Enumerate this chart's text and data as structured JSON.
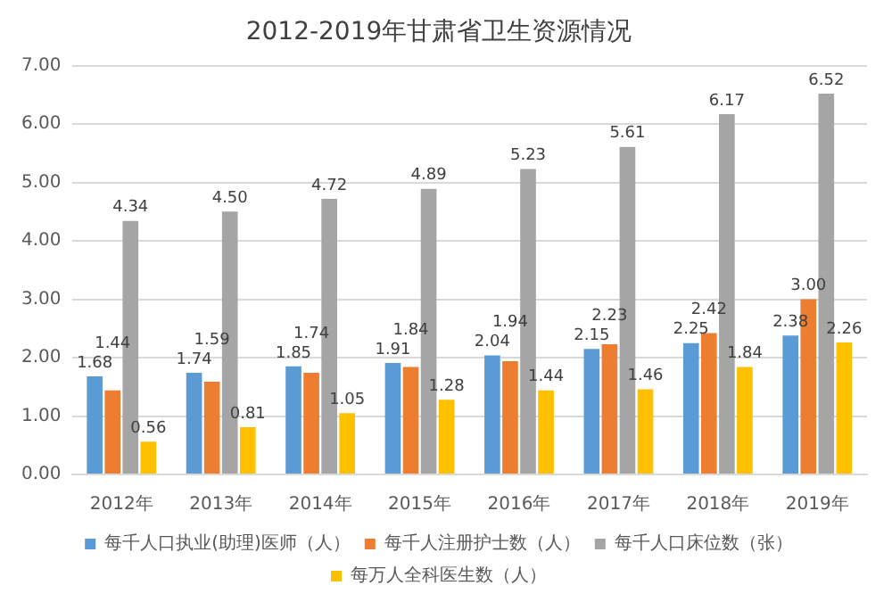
{
  "chart_data": {
    "type": "bar",
    "title": "2012-2019年甘肃省卫生资源情况",
    "categories": [
      "2012年",
      "2013年",
      "2014年",
      "2015年",
      "2016年",
      "2017年",
      "2018年",
      "2019年"
    ],
    "series": [
      {
        "name": "每千人口执业(助理)医师（人）",
        "color": "#5b9bd5",
        "values": [
          1.68,
          1.74,
          1.85,
          1.91,
          2.04,
          2.15,
          2.25,
          2.38
        ],
        "value_labels": [
          "1.68",
          "1.74",
          "1.85",
          "1.91",
          "2.04",
          "2.15",
          "2.25",
          "2.38"
        ]
      },
      {
        "name": "每千人注册护士数（人）",
        "color": "#ed7d31",
        "values": [
          1.44,
          1.59,
          1.74,
          1.84,
          1.94,
          2.23,
          2.42,
          3.0
        ],
        "value_labels": [
          "1.44",
          "1.59",
          "1.74",
          "1.84",
          "1.94",
          "2.23",
          "2.42",
          "3.00"
        ]
      },
      {
        "name": "每千人口床位数（张）",
        "color": "#a5a5a5",
        "values": [
          4.34,
          4.5,
          4.72,
          4.89,
          5.23,
          5.61,
          6.17,
          6.52
        ],
        "value_labels": [
          "4.34",
          "4.50",
          "4.72",
          "4.89",
          "5.23",
          "5.61",
          "6.17",
          "6.52"
        ]
      },
      {
        "name": "每万人全科医生数（人）",
        "color": "#ffc000",
        "values": [
          0.56,
          0.81,
          1.05,
          1.28,
          1.44,
          1.46,
          1.84,
          2.26
        ],
        "value_labels": [
          "0.56",
          "0.81",
          "1.05",
          "1.28",
          "1.44",
          "1.46",
          "1.84",
          "2.26"
        ]
      }
    ],
    "ylim": [
      0,
      7
    ],
    "yticks": [
      {
        "value": 0,
        "label": "0.00"
      },
      {
        "value": 1,
        "label": "1.00"
      },
      {
        "value": 2,
        "label": "2.00"
      },
      {
        "value": 3,
        "label": "3.00"
      },
      {
        "value": 4,
        "label": "4.00"
      },
      {
        "value": 5,
        "label": "5.00"
      },
      {
        "value": 6,
        "label": "6.00"
      },
      {
        "value": 7,
        "label": "7.00"
      }
    ],
    "grid": "y",
    "legend": "bottom"
  }
}
